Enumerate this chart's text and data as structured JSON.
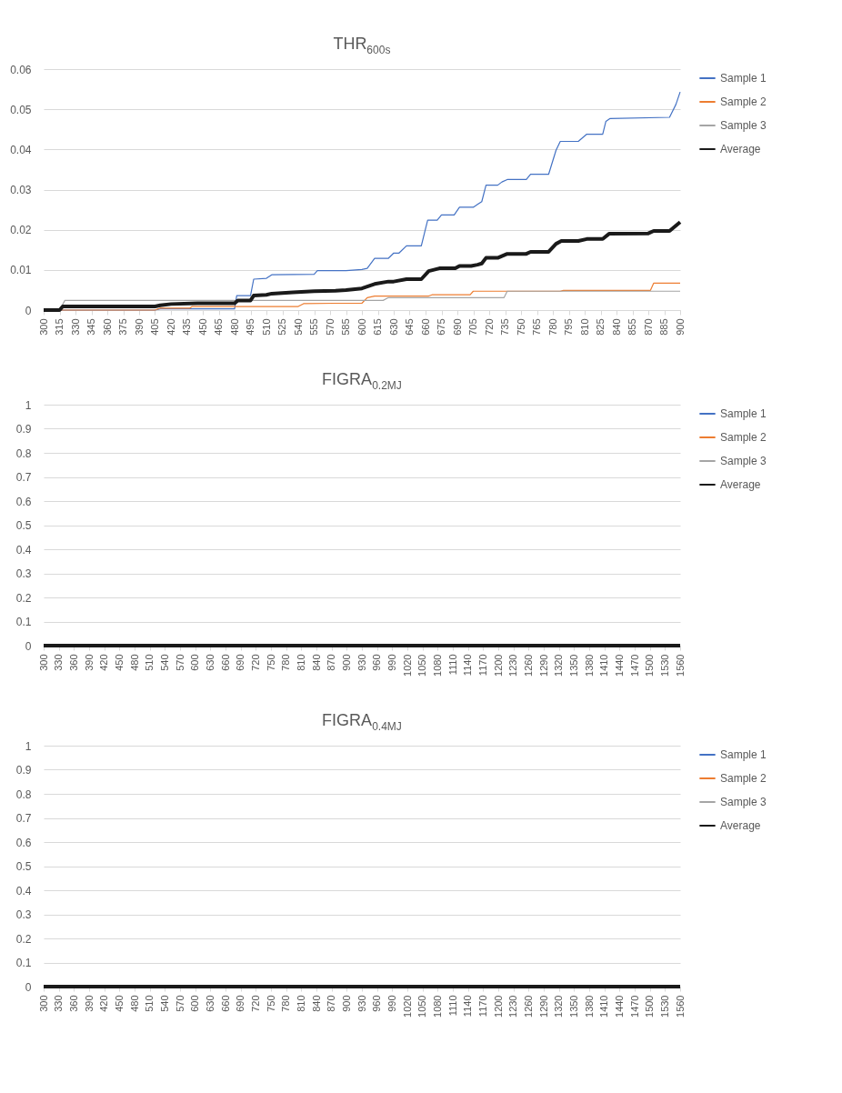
{
  "chart_data": [
    {
      "type": "line",
      "title": "THR$_{600s}$",
      "legend": "right",
      "grid": "y",
      "xlim": [
        300,
        900
      ],
      "xticks": [
        300,
        315,
        330,
        345,
        360,
        375,
        390,
        405,
        420,
        435,
        450,
        465,
        480,
        495,
        510,
        525,
        540,
        555,
        570,
        585,
        600,
        615,
        630,
        645,
        660,
        675,
        690,
        705,
        720,
        735,
        750,
        765,
        780,
        795,
        810,
        825,
        840,
        855,
        870,
        885,
        900
      ],
      "ylim": [
        0,
        0.06
      ],
      "yticks": [
        0,
        0.01,
        0.02,
        0.03,
        0.04,
        0.05,
        0.06
      ],
      "series": [
        {
          "name": "Sample 1",
          "color": "#4472c4",
          "x": [
            300,
            405,
            410,
            480,
            482,
            495,
            498,
            510,
            515,
            555,
            558,
            585,
            600,
            605,
            612,
            625,
            630,
            635,
            642,
            656,
            662,
            671,
            675,
            687,
            692,
            705,
            709,
            713,
            717,
            728,
            732,
            737,
            755,
            759,
            776,
            783,
            787,
            804,
            812,
            827,
            830,
            834,
            890,
            896,
            900
          ],
          "values": [
            0,
            0,
            0.0003,
            0.0003,
            0.0036,
            0.0036,
            0.0077,
            0.0079,
            0.0088,
            0.0089,
            0.0098,
            0.0098,
            0.0101,
            0.0104,
            0.0129,
            0.0129,
            0.0142,
            0.0142,
            0.016,
            0.016,
            0.0224,
            0.0224,
            0.0237,
            0.0237,
            0.0256,
            0.0256,
            0.0263,
            0.027,
            0.0311,
            0.0311,
            0.0319,
            0.0325,
            0.0325,
            0.0338,
            0.0338,
            0.0398,
            0.042,
            0.042,
            0.0438,
            0.0438,
            0.047,
            0.0477,
            0.048,
            0.0512,
            0.0543
          ]
        },
        {
          "name": "Sample 2",
          "color": "#ed7d31",
          "x": [
            300,
            405,
            410,
            438,
            440,
            540,
            545,
            575,
            600,
            605,
            612,
            663,
            666,
            702,
            705,
            787,
            790,
            872,
            875,
            900
          ],
          "values": [
            0,
            0,
            0.0005,
            0.0005,
            0.0009,
            0.0009,
            0.0016,
            0.0017,
            0.0017,
            0.0031,
            0.0035,
            0.0035,
            0.0038,
            0.0038,
            0.0047,
            0.0047,
            0.0049,
            0.0049,
            0.0067,
            0.0067
          ]
        },
        {
          "name": "Sample 3",
          "color": "#a5a5a5",
          "x": [
            300,
            315,
            320,
            620,
            625,
            734,
            737,
            900
          ],
          "values": [
            0,
            0,
            0.0024,
            0.0024,
            0.0031,
            0.0031,
            0.0047,
            0.0047
          ]
        },
        {
          "name": "Average",
          "color": "#1a1a1a",
          "x": [
            300,
            315,
            318,
            405,
            410,
            420,
            445,
            480,
            483,
            495,
            498,
            510,
            515,
            535,
            555,
            575,
            585,
            600,
            612,
            625,
            630,
            642,
            656,
            663,
            673,
            688,
            692,
            703,
            709,
            713,
            717,
            728,
            737,
            755,
            759,
            776,
            783,
            788,
            804,
            812,
            827,
            833,
            870,
            875,
            890,
            900
          ],
          "values": [
            0,
            0,
            0.0009,
            0.0009,
            0.0012,
            0.0015,
            0.0017,
            0.0017,
            0.0024,
            0.0024,
            0.0036,
            0.0038,
            0.0041,
            0.0044,
            0.0047,
            0.0048,
            0.005,
            0.0054,
            0.0065,
            0.0071,
            0.0071,
            0.0077,
            0.0077,
            0.0097,
            0.0104,
            0.0104,
            0.011,
            0.011,
            0.0113,
            0.0116,
            0.013,
            0.013,
            0.014,
            0.014,
            0.0145,
            0.0145,
            0.0165,
            0.0172,
            0.0172,
            0.0177,
            0.0177,
            0.019,
            0.0191,
            0.0197,
            0.0197,
            0.0219
          ]
        }
      ]
    },
    {
      "type": "line",
      "title": "FIGRA$_{0.2MJ}$",
      "legend": "right",
      "grid": "y",
      "xlim": [
        300,
        1560
      ],
      "xticks": [
        300,
        330,
        360,
        390,
        420,
        450,
        480,
        510,
        540,
        570,
        600,
        630,
        660,
        690,
        720,
        750,
        780,
        810,
        840,
        870,
        900,
        930,
        960,
        990,
        1020,
        1050,
        1080,
        1110,
        1140,
        1170,
        1200,
        1230,
        1260,
        1290,
        1320,
        1350,
        1380,
        1410,
        1440,
        1470,
        1500,
        1530,
        1560
      ],
      "ylim": [
        0,
        1
      ],
      "yticks": [
        0,
        0.1,
        0.2,
        0.3,
        0.4,
        0.5,
        0.6,
        0.7,
        0.8,
        0.9,
        1
      ],
      "series": [
        {
          "name": "Sample 1",
          "color": "#4472c4",
          "values": [
            null,
            null
          ]
        },
        {
          "name": "Sample 2",
          "color": "#ed7d31",
          "values": [
            null,
            null
          ]
        },
        {
          "name": "Sample 3",
          "color": "#a5a5a5",
          "values": [
            null,
            null
          ]
        },
        {
          "name": "Average",
          "color": "#1a1a1a",
          "x": [
            300,
            1560
          ],
          "values": [
            0,
            0
          ]
        }
      ]
    },
    {
      "type": "line",
      "title": "FIGRA$_{0.4MJ}$",
      "legend": "right",
      "grid": "y",
      "xlim": [
        300,
        1560
      ],
      "xticks": [
        300,
        330,
        360,
        390,
        420,
        450,
        480,
        510,
        540,
        570,
        600,
        630,
        660,
        690,
        720,
        750,
        780,
        810,
        840,
        870,
        900,
        930,
        960,
        990,
        1020,
        1050,
        1080,
        1110,
        1140,
        1170,
        1200,
        1230,
        1260,
        1290,
        1320,
        1350,
        1380,
        1410,
        1440,
        1470,
        1500,
        1530,
        1560
      ],
      "ylim": [
        0,
        1
      ],
      "yticks": [
        0,
        0.1,
        0.2,
        0.3,
        0.4,
        0.5,
        0.6,
        0.7,
        0.8,
        0.9,
        1
      ],
      "series": [
        {
          "name": "Sample 1",
          "color": "#4472c4",
          "values": [
            null,
            null
          ]
        },
        {
          "name": "Sample 2",
          "color": "#ed7d31",
          "values": [
            null,
            null
          ]
        },
        {
          "name": "Sample 3",
          "color": "#a5a5a5",
          "values": [
            null,
            null
          ]
        },
        {
          "name": "Average",
          "color": "#1a1a1a",
          "x": [
            300,
            1560
          ],
          "values": [
            0,
            0
          ]
        }
      ]
    }
  ]
}
